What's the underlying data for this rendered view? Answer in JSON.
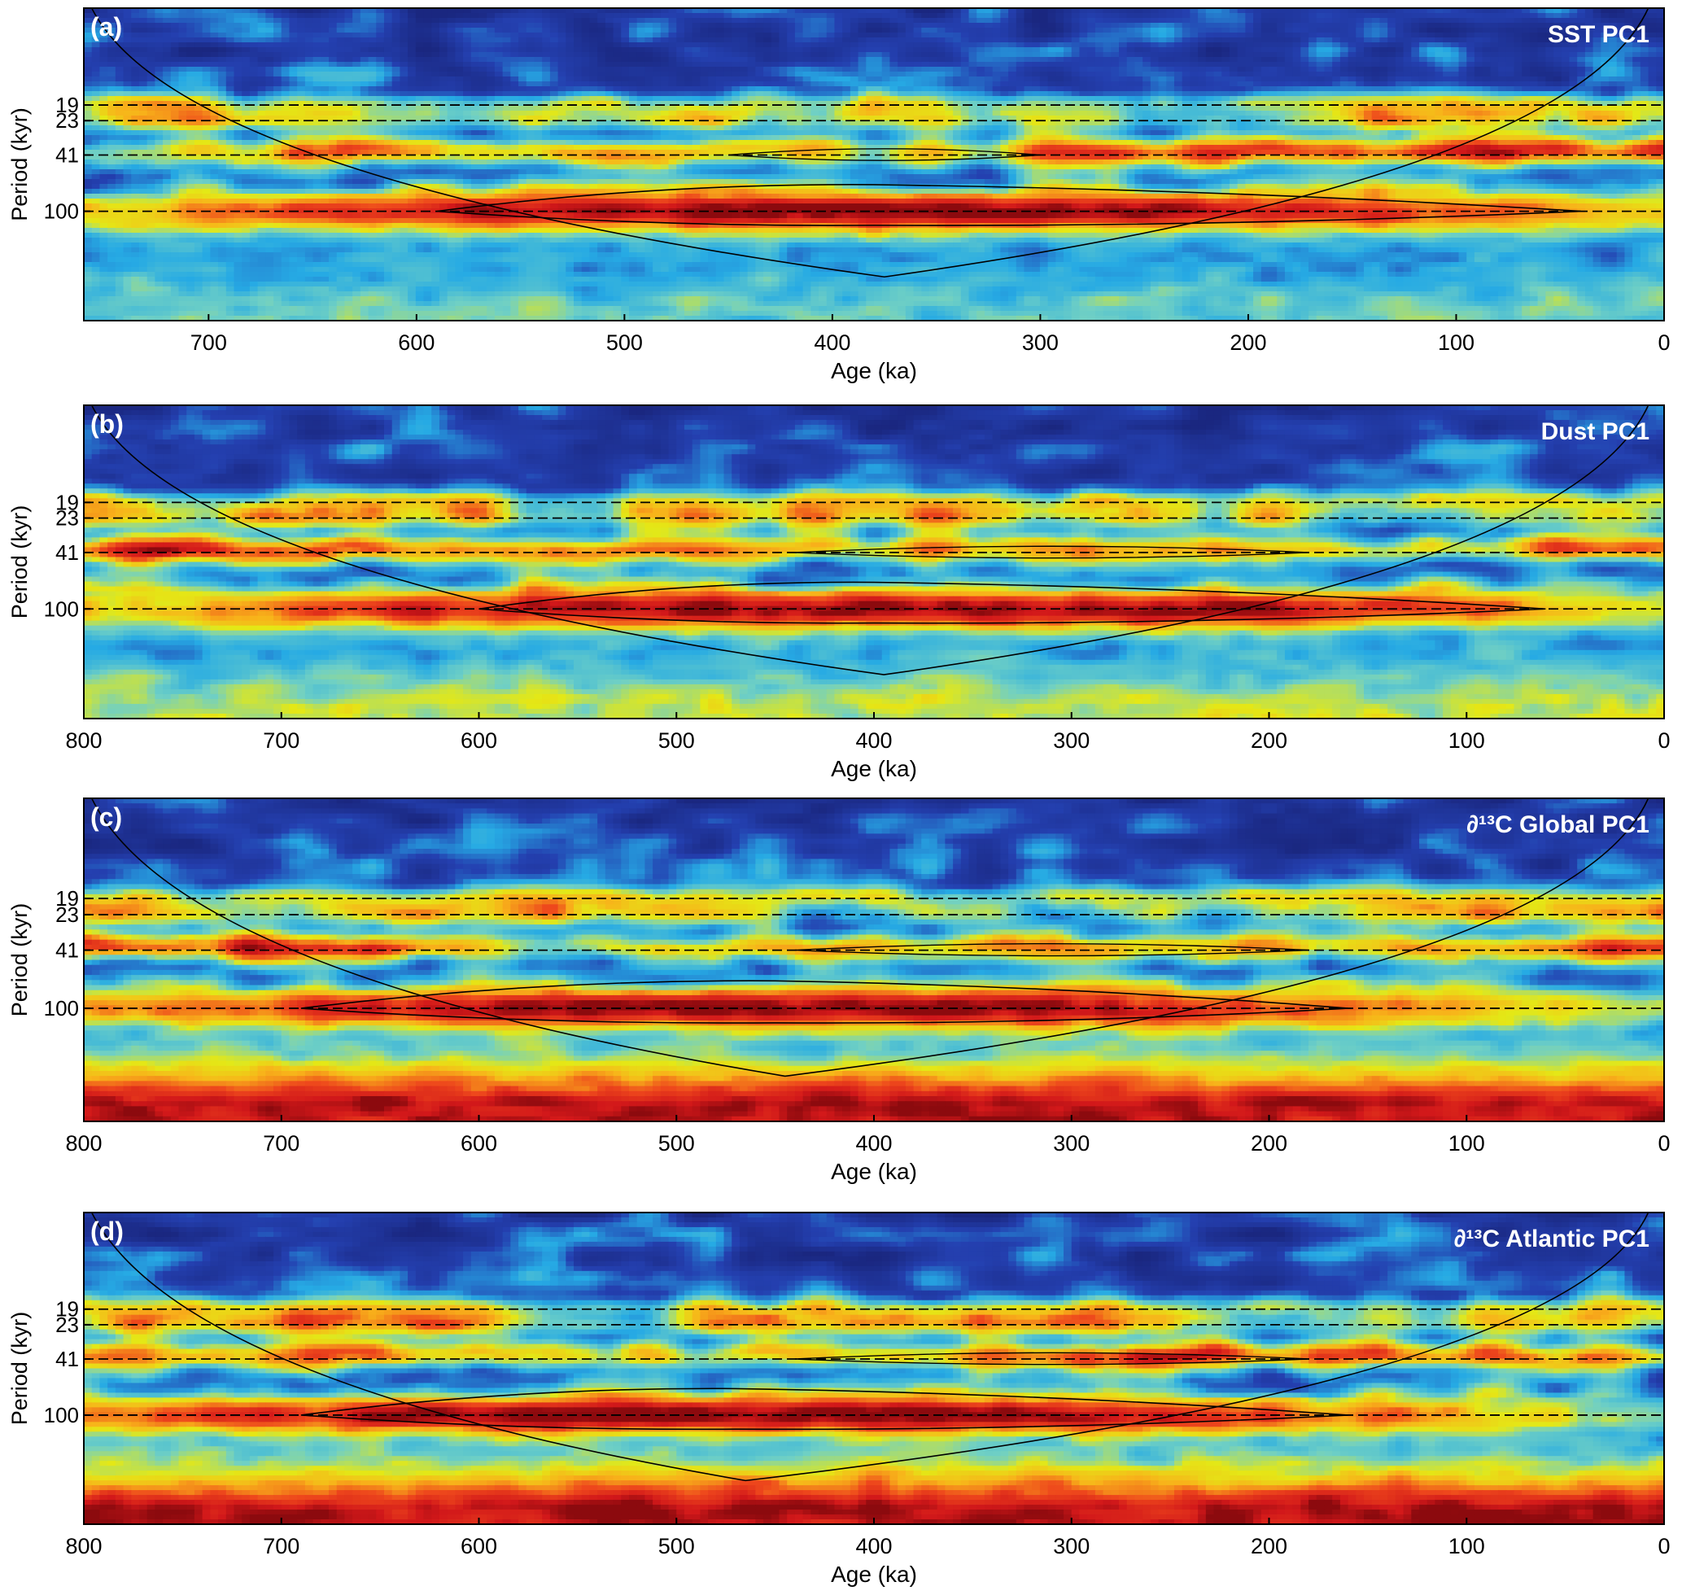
{
  "chart_data": [
    {
      "type": "heatmap",
      "panel_label": "(a)",
      "title": "SST PC1",
      "xlabel": "Age (ka)",
      "ylabel": "Period (kyr)",
      "xlim": [
        760,
        0
      ],
      "x_ticks": [
        700,
        600,
        500,
        400,
        300,
        200,
        100,
        0
      ],
      "y_ticks": [
        19,
        23,
        41,
        100
      ],
      "reference_periods": [
        19,
        23,
        41,
        100
      ],
      "peak_age": 380,
      "cone_of_influence": true,
      "colormap": "jet"
    },
    {
      "type": "heatmap",
      "panel_label": "(b)",
      "title": "Dust PC1",
      "xlabel": "Age (ka)",
      "ylabel": "Period (kyr)",
      "xlim": [
        800,
        0
      ],
      "x_ticks": [
        800,
        700,
        600,
        500,
        400,
        300,
        200,
        100,
        0
      ],
      "y_ticks": [
        19,
        23,
        41,
        100
      ],
      "reference_periods": [
        19,
        23,
        41,
        100
      ],
      "peak_age": 400,
      "cone_of_influence": true,
      "colormap": "jet"
    },
    {
      "type": "heatmap",
      "panel_label": "(c)",
      "title": "∂¹³C Global PC1",
      "xlabel": "Age (ka)",
      "ylabel": "Period (kyr)",
      "xlim": [
        800,
        0
      ],
      "x_ticks": [
        800,
        700,
        600,
        500,
        400,
        300,
        200,
        100,
        0
      ],
      "y_ticks": [
        19,
        23,
        41,
        100
      ],
      "reference_periods": [
        19,
        23,
        41,
        100
      ],
      "peak_age": 450,
      "cone_of_influence": true,
      "colormap": "jet"
    },
    {
      "type": "heatmap",
      "panel_label": "(d)",
      "title": "∂¹³C Atlantic PC1",
      "xlabel": "Age (ka)",
      "ylabel": "Period (kyr)",
      "xlim": [
        800,
        0
      ],
      "x_ticks": [
        800,
        700,
        600,
        500,
        400,
        300,
        200,
        100,
        0
      ],
      "y_ticks": [
        19,
        23,
        41,
        100
      ],
      "reference_periods": [
        19,
        23,
        41,
        100
      ],
      "peak_age": 470,
      "cone_of_influence": true,
      "colormap": "jet"
    }
  ]
}
